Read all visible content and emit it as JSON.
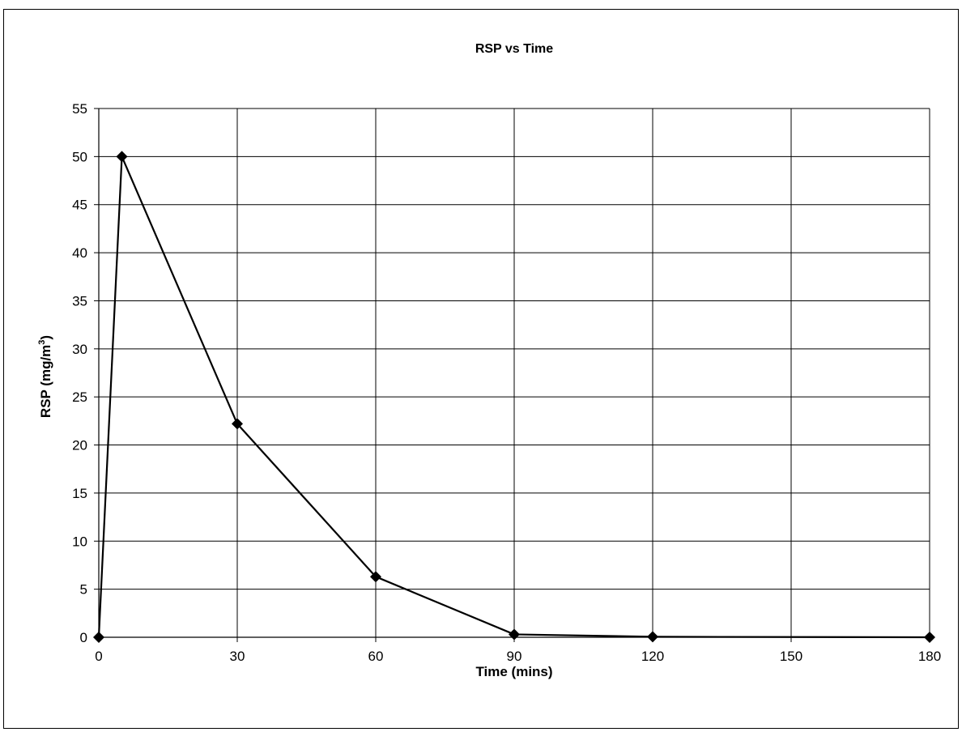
{
  "chart_data": {
    "type": "line",
    "title": "RSP vs Time",
    "xlabel": "Time (mins)",
    "ylabel_main": "RSP (mg/m",
    "ylabel_sup": "3",
    "ylabel_close": ")",
    "xlim": [
      0,
      180
    ],
    "ylim": [
      0,
      55
    ],
    "x_ticks": [
      0,
      30,
      60,
      90,
      120,
      150,
      180
    ],
    "y_ticks": [
      0,
      5,
      10,
      15,
      20,
      25,
      30,
      35,
      40,
      45,
      50,
      55
    ],
    "grid": true,
    "legend": "none",
    "series": [
      {
        "x": [
          0,
          5,
          30,
          60,
          90,
          120,
          180
        ],
        "values": [
          0,
          50,
          22.2,
          6.3,
          0.3,
          0.05,
          0
        ],
        "marker": "diamond",
        "color": "#000000"
      }
    ]
  }
}
